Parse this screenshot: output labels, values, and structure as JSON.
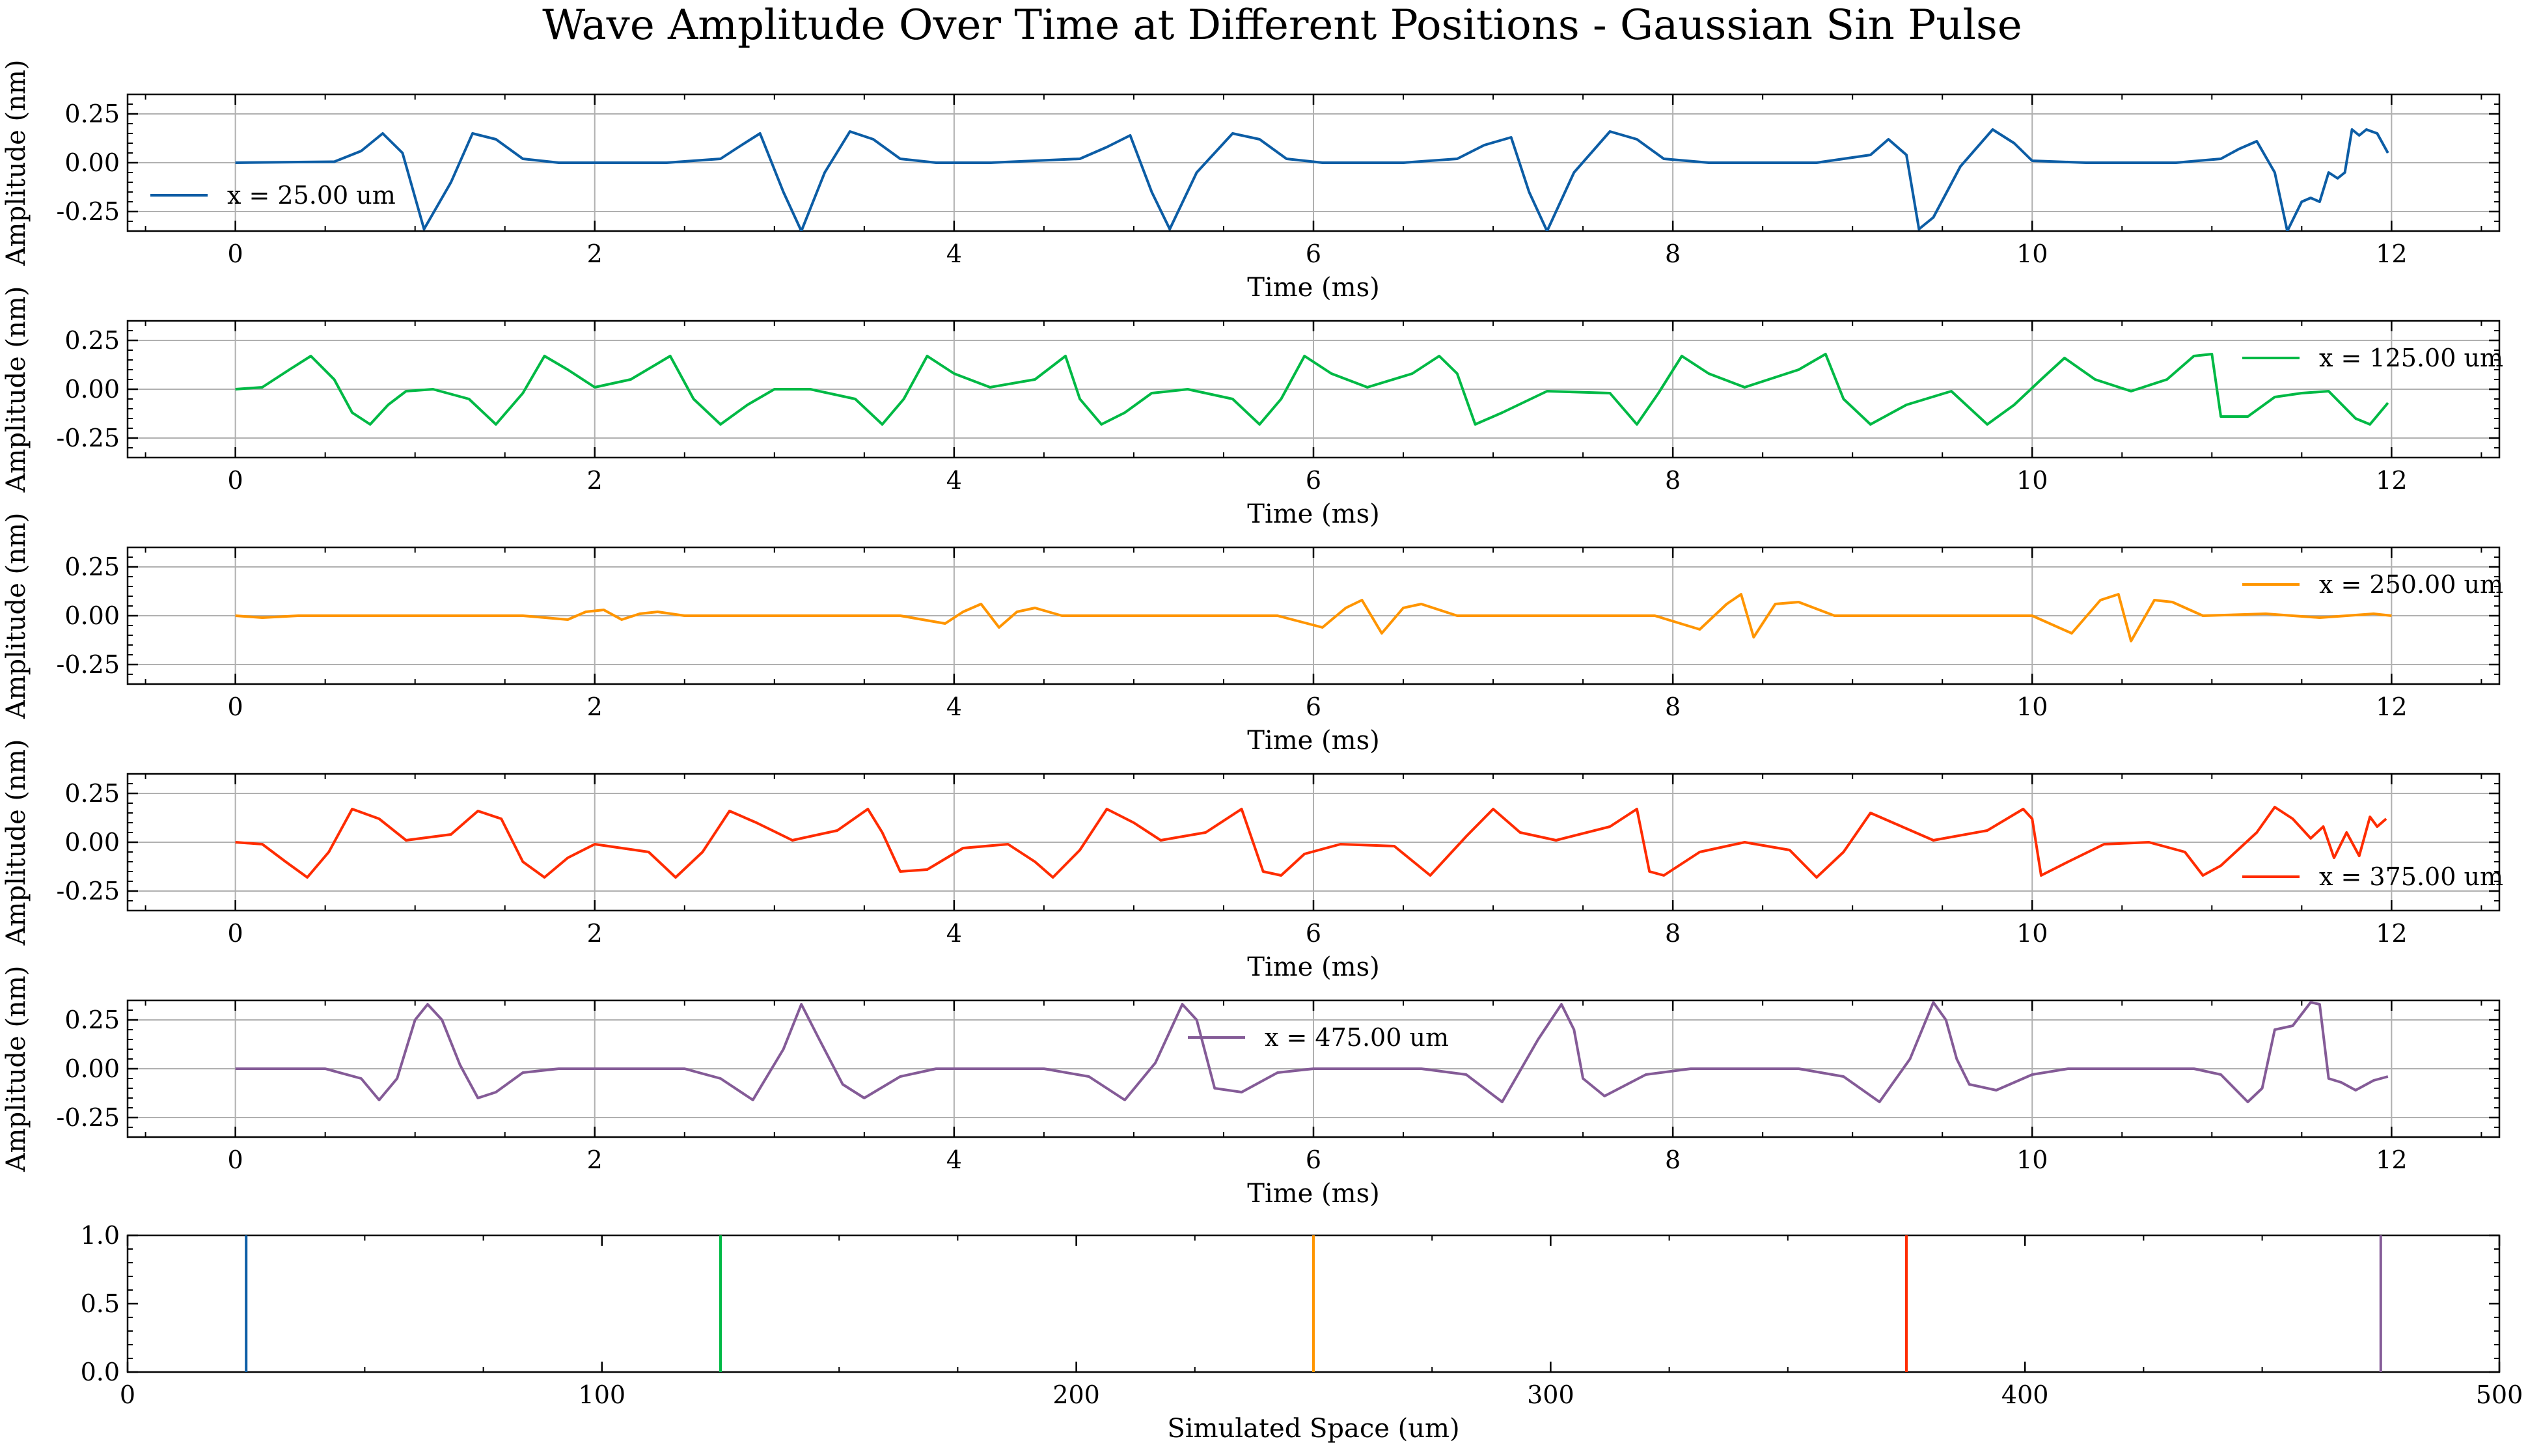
{
  "chart_data": {
    "type": "line",
    "title": "Wave Amplitude Over Time at Different Positions - Gaussian Sin Pulse",
    "panels": [
      {
        "series_name": "x = 25.00 um",
        "color": "#0c5da5",
        "legend_location": "left",
        "xlabel": "Time (ms)",
        "ylabel": "Amplitude (nm)",
        "xlim": [
          -0.6,
          12.6
        ],
        "ylim": [
          -0.35,
          0.35
        ],
        "xticks": [
          "0",
          "2",
          "4",
          "6",
          "8",
          "10",
          "12"
        ],
        "yticks": [
          "0.25",
          "0.00",
          "-0.25"
        ],
        "grid": true,
        "x": [
          0,
          0.55,
          0.7,
          0.82,
          0.93,
          1.05,
          1.2,
          1.32,
          1.45,
          1.6,
          1.8,
          2.0,
          2.4,
          2.7,
          2.8,
          2.92,
          3.05,
          3.15,
          3.28,
          3.42,
          3.55,
          3.7,
          3.9,
          4.2,
          4.7,
          4.85,
          4.98,
          5.1,
          5.2,
          5.35,
          5.55,
          5.7,
          5.85,
          6.05,
          6.5,
          6.8,
          6.95,
          7.1,
          7.2,
          7.3,
          7.45,
          7.65,
          7.8,
          7.95,
          8.2,
          8.8,
          9.1,
          9.2,
          9.3,
          9.37,
          9.45,
          9.6,
          9.78,
          9.9,
          10.0,
          10.3,
          10.8,
          11.05,
          11.15,
          11.25,
          11.35,
          11.42,
          11.5,
          11.55,
          11.6,
          11.65,
          11.7,
          11.74,
          11.78,
          11.82,
          11.86,
          11.92,
          11.98
        ],
        "y": [
          0,
          0.005,
          0.06,
          0.15,
          0.05,
          -0.34,
          -0.1,
          0.15,
          0.12,
          0.02,
          0,
          0,
          0,
          0.02,
          0.08,
          0.15,
          -0.15,
          -0.35,
          -0.05,
          0.16,
          0.12,
          0.02,
          0,
          0,
          0.02,
          0.08,
          0.14,
          -0.15,
          -0.34,
          -0.05,
          0.15,
          0.12,
          0.02,
          0,
          0,
          0.02,
          0.09,
          0.13,
          -0.15,
          -0.35,
          -0.05,
          0.16,
          0.12,
          0.02,
          0,
          0,
          0.04,
          0.12,
          0.04,
          -0.34,
          -0.28,
          -0.02,
          0.17,
          0.1,
          0.01,
          0,
          0,
          0.02,
          0.07,
          0.11,
          -0.05,
          -0.35,
          -0.2,
          -0.18,
          -0.2,
          -0.05,
          -0.08,
          -0.05,
          0.17,
          0.14,
          0.17,
          0.15,
          0.05
        ]
      },
      {
        "series_name": "x = 125.00 um",
        "color": "#00b945",
        "legend_location": "upper right",
        "xlabel": "Time (ms)",
        "ylabel": "Amplitude (nm)",
        "xlim": [
          -0.6,
          12.6
        ],
        "ylim": [
          -0.35,
          0.35
        ],
        "xticks": [
          "0",
          "2",
          "4",
          "6",
          "8",
          "10",
          "12"
        ],
        "yticks": [
          "0.25",
          "0.00",
          "-0.25"
        ],
        "grid": true,
        "x": [
          0,
          0.15,
          0.3,
          0.42,
          0.55,
          0.65,
          0.75,
          0.85,
          0.95,
          1.1,
          1.3,
          1.45,
          1.6,
          1.72,
          1.85,
          2.0,
          2.2,
          2.42,
          2.55,
          2.7,
          2.85,
          3.0,
          3.2,
          3.45,
          3.6,
          3.72,
          3.85,
          4.0,
          4.2,
          4.45,
          4.62,
          4.7,
          4.82,
          4.95,
          5.1,
          5.3,
          5.55,
          5.7,
          5.82,
          5.95,
          6.1,
          6.3,
          6.55,
          6.7,
          6.8,
          6.9,
          7.05,
          7.3,
          7.65,
          7.8,
          7.92,
          8.05,
          8.2,
          8.4,
          8.7,
          8.85,
          8.95,
          9.1,
          9.3,
          9.55,
          9.75,
          9.9,
          10.05,
          10.18,
          10.35,
          10.55,
          10.75,
          10.9,
          11.0,
          11.05,
          11.2,
          11.35,
          11.5,
          11.65,
          11.8,
          11.88,
          11.98
        ],
        "y": [
          0,
          0.01,
          0.1,
          0.17,
          0.05,
          -0.12,
          -0.18,
          -0.08,
          -0.01,
          0,
          -0.05,
          -0.18,
          -0.02,
          0.17,
          0.1,
          0.01,
          0.05,
          0.17,
          -0.05,
          -0.18,
          -0.08,
          0,
          0,
          -0.05,
          -0.18,
          -0.05,
          0.17,
          0.08,
          0.01,
          0.05,
          0.17,
          -0.05,
          -0.18,
          -0.12,
          -0.02,
          0,
          -0.05,
          -0.18,
          -0.05,
          0.17,
          0.08,
          0.01,
          0.08,
          0.17,
          0.08,
          -0.18,
          -0.12,
          -0.01,
          -0.02,
          -0.18,
          -0.02,
          0.17,
          0.08,
          0.01,
          0.1,
          0.18,
          -0.05,
          -0.18,
          -0.08,
          -0.01,
          -0.18,
          -0.08,
          0.05,
          0.16,
          0.05,
          -0.01,
          0.05,
          0.17,
          0.18,
          -0.14,
          -0.14,
          -0.04,
          -0.02,
          -0.01,
          -0.15,
          -0.18,
          -0.07
        ]
      },
      {
        "series_name": "x = 250.00 um",
        "color": "#ff9500",
        "legend_location": "upper right",
        "xlabel": "Time (ms)",
        "ylabel": "Amplitude (nm)",
        "xlim": [
          -0.6,
          12.6
        ],
        "ylim": [
          -0.35,
          0.35
        ],
        "xticks": [
          "0",
          "2",
          "4",
          "6",
          "8",
          "10",
          "12"
        ],
        "yticks": [
          "0.25",
          "0.00",
          "-0.25"
        ],
        "grid": true,
        "x": [
          0,
          0.15,
          0.35,
          1.6,
          1.85,
          1.95,
          2.05,
          2.15,
          2.25,
          2.35,
          2.5,
          3.7,
          3.95,
          4.05,
          4.15,
          4.25,
          4.35,
          4.45,
          4.6,
          5.8,
          6.05,
          6.18,
          6.27,
          6.38,
          6.5,
          6.6,
          6.8,
          7.9,
          8.15,
          8.3,
          8.38,
          8.45,
          8.57,
          8.7,
          8.9,
          10.0,
          10.22,
          10.38,
          10.48,
          10.55,
          10.68,
          10.78,
          10.95,
          11.3,
          11.6,
          11.9,
          12.0
        ],
        "y": [
          0,
          -0.01,
          0,
          0,
          -0.02,
          0.02,
          0.03,
          -0.02,
          0.01,
          0.02,
          0,
          0,
          -0.04,
          0.02,
          0.06,
          -0.06,
          0.02,
          0.04,
          0,
          0,
          -0.06,
          0.04,
          0.08,
          -0.09,
          0.04,
          0.06,
          0,
          0,
          -0.07,
          0.06,
          0.11,
          -0.11,
          0.06,
          0.07,
          0,
          0,
          -0.09,
          0.08,
          0.11,
          -0.13,
          0.08,
          0.07,
          0,
          0.01,
          -0.01,
          0.01,
          0
        ]
      },
      {
        "series_name": "x = 375.00 um",
        "color": "#ff2c00",
        "legend_location": "lower right",
        "xlabel": "Time (ms)",
        "ylabel": "Amplitude (nm)",
        "xlim": [
          -0.6,
          12.6
        ],
        "ylim": [
          -0.35,
          0.35
        ],
        "xticks": [
          "0",
          "2",
          "4",
          "6",
          "8",
          "10",
          "12"
        ],
        "yticks": [
          "0.25",
          "0.00",
          "-0.25"
        ],
        "grid": true,
        "x": [
          0,
          0.15,
          0.28,
          0.4,
          0.52,
          0.65,
          0.8,
          0.95,
          1.2,
          1.35,
          1.48,
          1.6,
          1.72,
          1.85,
          2.0,
          2.3,
          2.45,
          2.6,
          2.75,
          2.9,
          3.1,
          3.35,
          3.52,
          3.6,
          3.7,
          3.85,
          4.05,
          4.3,
          4.45,
          4.55,
          4.7,
          4.85,
          5.0,
          5.15,
          5.4,
          5.6,
          5.72,
          5.82,
          5.95,
          6.15,
          6.45,
          6.65,
          6.85,
          7.0,
          7.15,
          7.35,
          7.65,
          7.8,
          7.87,
          7.95,
          8.15,
          8.4,
          8.65,
          8.8,
          8.95,
          9.1,
          9.25,
          9.45,
          9.75,
          9.95,
          10.0,
          10.05,
          10.2,
          10.4,
          10.65,
          10.85,
          10.95,
          11.05,
          11.25,
          11.35,
          11.45,
          11.55,
          11.62,
          11.68,
          11.75,
          11.82,
          11.88,
          11.92,
          11.97
        ],
        "y": [
          0,
          -0.01,
          -0.1,
          -0.18,
          -0.05,
          0.17,
          0.12,
          0.01,
          0.04,
          0.16,
          0.12,
          -0.1,
          -0.18,
          -0.08,
          -0.01,
          -0.05,
          -0.18,
          -0.05,
          0.16,
          0.1,
          0.01,
          0.06,
          0.17,
          0.05,
          -0.15,
          -0.14,
          -0.03,
          -0.01,
          -0.1,
          -0.18,
          -0.04,
          0.17,
          0.1,
          0.01,
          0.05,
          0.17,
          -0.15,
          -0.17,
          -0.06,
          -0.01,
          -0.02,
          -0.17,
          0.03,
          0.17,
          0.05,
          0.01,
          0.08,
          0.17,
          -0.15,
          -0.17,
          -0.05,
          0,
          -0.04,
          -0.18,
          -0.05,
          0.15,
          0.09,
          0.01,
          0.06,
          0.17,
          0.12,
          -0.17,
          -0.1,
          -0.01,
          0,
          -0.05,
          -0.17,
          -0.12,
          0.05,
          0.18,
          0.12,
          0.02,
          0.08,
          -0.08,
          0.05,
          -0.07,
          0.13,
          0.08,
          0.12
        ]
      },
      {
        "series_name": "x = 475.00 um",
        "color": "#845b97",
        "legend_location": "upper center",
        "xlabel": "Time (ms)",
        "ylabel": "Amplitude (nm)",
        "xlim": [
          -0.6,
          12.6
        ],
        "ylim": [
          -0.35,
          0.35
        ],
        "xticks": [
          "0",
          "2",
          "4",
          "6",
          "8",
          "10",
          "12"
        ],
        "yticks": [
          "0.25",
          "0.00",
          "-0.25"
        ],
        "grid": true,
        "x": [
          0,
          0.5,
          0.7,
          0.8,
          0.9,
          1.0,
          1.07,
          1.15,
          1.25,
          1.35,
          1.45,
          1.6,
          1.8,
          2.0,
          2.5,
          2.7,
          2.88,
          3.05,
          3.15,
          3.25,
          3.38,
          3.5,
          3.7,
          3.9,
          4.5,
          4.75,
          4.95,
          5.12,
          5.27,
          5.35,
          5.45,
          5.6,
          5.8,
          6.0,
          6.6,
          6.85,
          7.05,
          7.25,
          7.38,
          7.45,
          7.5,
          7.62,
          7.85,
          8.1,
          8.7,
          8.95,
          9.15,
          9.32,
          9.45,
          9.52,
          9.58,
          9.65,
          9.8,
          10.0,
          10.2,
          10.9,
          11.05,
          11.2,
          11.28,
          11.35,
          11.45,
          11.55,
          11.6,
          11.65,
          11.72,
          11.8,
          11.9,
          11.98
        ],
        "y": [
          0,
          0,
          -0.05,
          -0.16,
          -0.05,
          0.25,
          0.33,
          0.25,
          0.02,
          -0.15,
          -0.12,
          -0.02,
          0,
          0,
          0,
          -0.05,
          -0.16,
          0.1,
          0.33,
          0.15,
          -0.08,
          -0.15,
          -0.04,
          0,
          0,
          -0.04,
          -0.16,
          0.03,
          0.33,
          0.25,
          -0.1,
          -0.12,
          -0.02,
          0,
          0,
          -0.03,
          -0.17,
          0.15,
          0.33,
          0.2,
          -0.05,
          -0.14,
          -0.03,
          0,
          0,
          -0.04,
          -0.17,
          0.05,
          0.34,
          0.25,
          0.05,
          -0.08,
          -0.11,
          -0.03,
          0,
          0,
          -0.03,
          -0.17,
          -0.1,
          0.2,
          0.22,
          0.34,
          0.33,
          -0.05,
          -0.07,
          -0.11,
          -0.06,
          -0.04
        ]
      }
    ],
    "positions_panel": {
      "type": "vlines",
      "xlabel": "Simulated Space (um)",
      "xlim": [
        0,
        500
      ],
      "ylim": [
        0,
        1
      ],
      "xticks": [
        "0",
        "100",
        "200",
        "300",
        "400",
        "500"
      ],
      "yticks": [
        "1.0",
        "0.5",
        "0.0"
      ],
      "grid": false,
      "lines": [
        {
          "x": 25,
          "color": "#0c5da5"
        },
        {
          "x": 125,
          "color": "#00b945"
        },
        {
          "x": 250,
          "color": "#ff9500"
        },
        {
          "x": 375,
          "color": "#ff2c00"
        },
        {
          "x": 475,
          "color": "#845b97"
        }
      ]
    }
  }
}
